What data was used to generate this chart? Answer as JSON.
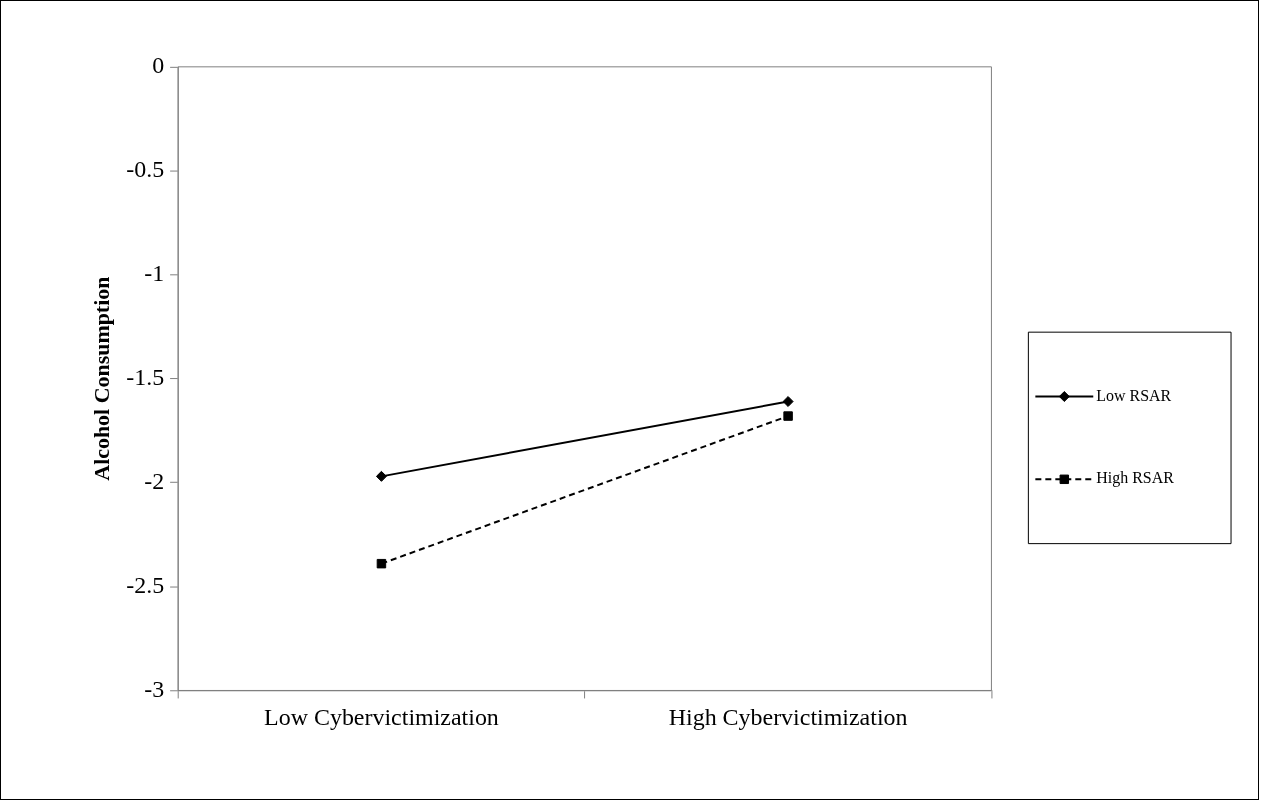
{
  "chart_data": {
    "type": "line",
    "ylabel": "Alcohol Consumption",
    "categories": [
      "Low Cybervictimization",
      "High Cybervictimization"
    ],
    "series": [
      {
        "name": "Low RSAR",
        "color": "#000000",
        "values": [
          -1.97,
          -1.61
        ],
        "marker": "diamond",
        "line_style": "solid"
      },
      {
        "name": "High RSAR",
        "color": "#000000",
        "values": [
          -2.39,
          -1.68
        ],
        "marker": "square",
        "line_style": "dashed"
      }
    ],
    "ylim": [
      -3,
      0
    ],
    "yticks": [
      -3,
      -2.5,
      -2,
      -1.5,
      -1,
      -0.5,
      0
    ],
    "grid": false,
    "legend": "right"
  }
}
